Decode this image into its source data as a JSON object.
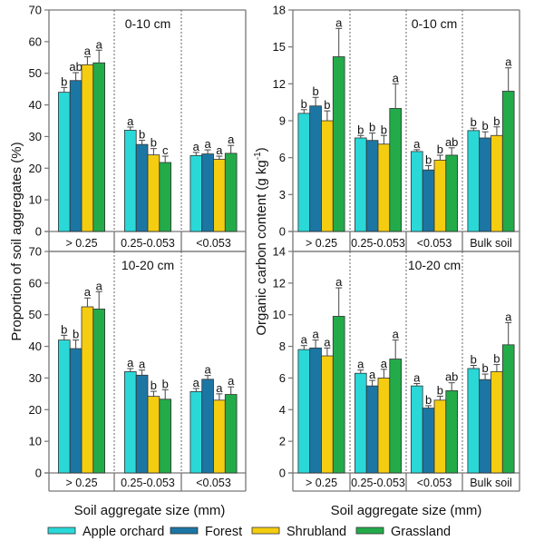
{
  "colors": {
    "Apple orchard": "#2ad8d8",
    "Forest": "#1c76a4",
    "Shrubland": "#f5cd10",
    "Grassland": "#23ab4a"
  },
  "legend": [
    "Apple orchard",
    "Forest",
    "Shrubland",
    "Grassland"
  ],
  "xlabels": {
    "left": "Soil aggregate size (mm)",
    "right": "Soil aggregate size (mm)"
  },
  "ylabels": {
    "left": "Proportion of soil aggregates (%)",
    "right_main": "Organic carbon content (g kg",
    "right_sup": "-1",
    "right_end": ")"
  },
  "chart_data": [
    {
      "type": "bar",
      "id": "left-top",
      "panel": "0-10 cm",
      "ylabel": "Proportion of soil aggregates (%)",
      "xlabel": "Soil aggregate size (mm)",
      "ylim": [
        0,
        70
      ],
      "yticks": [
        0,
        10,
        20,
        30,
        40,
        50,
        60,
        70
      ],
      "categories": [
        "> 0.25",
        "0.25-0.053",
        "<0.053"
      ],
      "series": [
        {
          "name": "Apple orchard",
          "values": [
            44,
            32,
            24
          ],
          "errors": [
            1.5,
            1,
            1
          ],
          "letters": [
            "b",
            "a",
            "a"
          ]
        },
        {
          "name": "Forest",
          "values": [
            47.7,
            27.5,
            24.5
          ],
          "errors": [
            2.5,
            1.3,
            1.3
          ],
          "letters": [
            "ab",
            "b",
            "a"
          ]
        },
        {
          "name": "Shrubland",
          "values": [
            52.7,
            24.2,
            22.8
          ],
          "errors": [
            2.5,
            2,
            1
          ],
          "letters": [
            "a",
            "b",
            "a"
          ]
        },
        {
          "name": "Grassland",
          "values": [
            53.3,
            21.8,
            24.7
          ],
          "errors": [
            4,
            2,
            2.5
          ],
          "letters": [
            "a",
            "c",
            "a"
          ]
        }
      ]
    },
    {
      "type": "bar",
      "id": "left-bottom",
      "panel": "10-20 cm",
      "ylabel": "Proportion of soil aggregates (%)",
      "xlabel": "Soil aggregate size (mm)",
      "ylim": [
        0,
        70
      ],
      "yticks": [
        0,
        10,
        20,
        30,
        40,
        50,
        60,
        70
      ],
      "categories": [
        "> 0.25",
        "0.25-0.053",
        "<0.053"
      ],
      "series": [
        {
          "name": "Apple orchard",
          "values": [
            42,
            32,
            25.7
          ],
          "errors": [
            1.5,
            1,
            1
          ],
          "letters": [
            "b",
            "a",
            "a"
          ]
        },
        {
          "name": "Forest",
          "values": [
            39.3,
            30.9,
            29.6
          ],
          "errors": [
            2.7,
            1.6,
            1.2
          ],
          "letters": [
            "b",
            "a",
            "a"
          ]
        },
        {
          "name": "Shrubland",
          "values": [
            52.5,
            24.2,
            23
          ],
          "errors": [
            2.8,
            1.6,
            2
          ],
          "letters": [
            "a",
            "b",
            "a"
          ]
        },
        {
          "name": "Grassland",
          "values": [
            51.8,
            23.3,
            24.8
          ],
          "errors": [
            5.5,
            3,
            2.4
          ],
          "letters": [
            "a",
            "b",
            "a"
          ]
        }
      ]
    },
    {
      "type": "bar",
      "id": "right-top",
      "panel": "0-10 cm",
      "ylabel": "Organic carbon content (g kg-1)",
      "xlabel": "Soil aggregate size (mm)",
      "ylim": [
        0,
        18
      ],
      "yticks": [
        0,
        3,
        6,
        9,
        12,
        15,
        18
      ],
      "categories": [
        "> 0.25",
        "0.25-0.053",
        "<0.053",
        "Bulk soil"
      ],
      "series": [
        {
          "name": "Apple orchard",
          "values": [
            9.6,
            7.6,
            6.5,
            8.2
          ],
          "errors": [
            0.3,
            0.2,
            0.15,
            0.2
          ],
          "letters": [
            "b",
            "b",
            "a",
            "b"
          ]
        },
        {
          "name": "Forest",
          "values": [
            10.2,
            7.4,
            5.0,
            7.6
          ],
          "errors": [
            0.7,
            0.6,
            0.35,
            0.5
          ],
          "letters": [
            "b",
            "b",
            "b",
            "b"
          ]
        },
        {
          "name": "Shrubland",
          "values": [
            9.0,
            7.1,
            5.8,
            7.8
          ],
          "errors": [
            0.8,
            0.7,
            0.4,
            0.7
          ],
          "letters": [
            "b",
            "b",
            "b",
            "b"
          ]
        },
        {
          "name": "Grassland",
          "values": [
            14.2,
            10.0,
            6.2,
            11.4
          ],
          "errors": [
            2.3,
            2.0,
            0.6,
            1.9
          ],
          "letters": [
            "a",
            "a",
            "ab",
            "a"
          ]
        }
      ]
    },
    {
      "type": "bar",
      "id": "right-bottom",
      "panel": "10-20 cm",
      "ylabel": "Organic carbon content (g kg-1)",
      "xlabel": "Soil aggregate size (mm)",
      "ylim": [
        0,
        14
      ],
      "yticks": [
        0,
        2,
        4,
        6,
        8,
        10,
        12,
        14
      ],
      "categories": [
        "> 0.25",
        "0.25-0.053",
        "<0.053",
        "Bulk soil"
      ],
      "series": [
        {
          "name": "Apple orchard",
          "values": [
            7.8,
            6.3,
            5.5,
            6.6
          ],
          "errors": [
            0.25,
            0.2,
            0.15,
            0.2
          ],
          "letters": [
            "a",
            "a",
            "a",
            "b"
          ]
        },
        {
          "name": "Forest",
          "values": [
            7.9,
            5.5,
            4.1,
            5.9
          ],
          "errors": [
            0.5,
            0.35,
            0.15,
            0.35
          ],
          "letters": [
            "a",
            "a",
            "b",
            "b"
          ]
        },
        {
          "name": "Shrubland",
          "values": [
            7.4,
            6.0,
            4.6,
            6.4
          ],
          "errors": [
            0.5,
            0.55,
            0.25,
            0.45
          ],
          "letters": [
            "a",
            "a",
            "b",
            "b"
          ]
        },
        {
          "name": "Grassland",
          "values": [
            9.9,
            7.2,
            5.2,
            8.1
          ],
          "errors": [
            1.8,
            1.2,
            0.5,
            1.4
          ],
          "letters": [
            "a",
            "a",
            "ab",
            "a"
          ]
        }
      ]
    }
  ]
}
